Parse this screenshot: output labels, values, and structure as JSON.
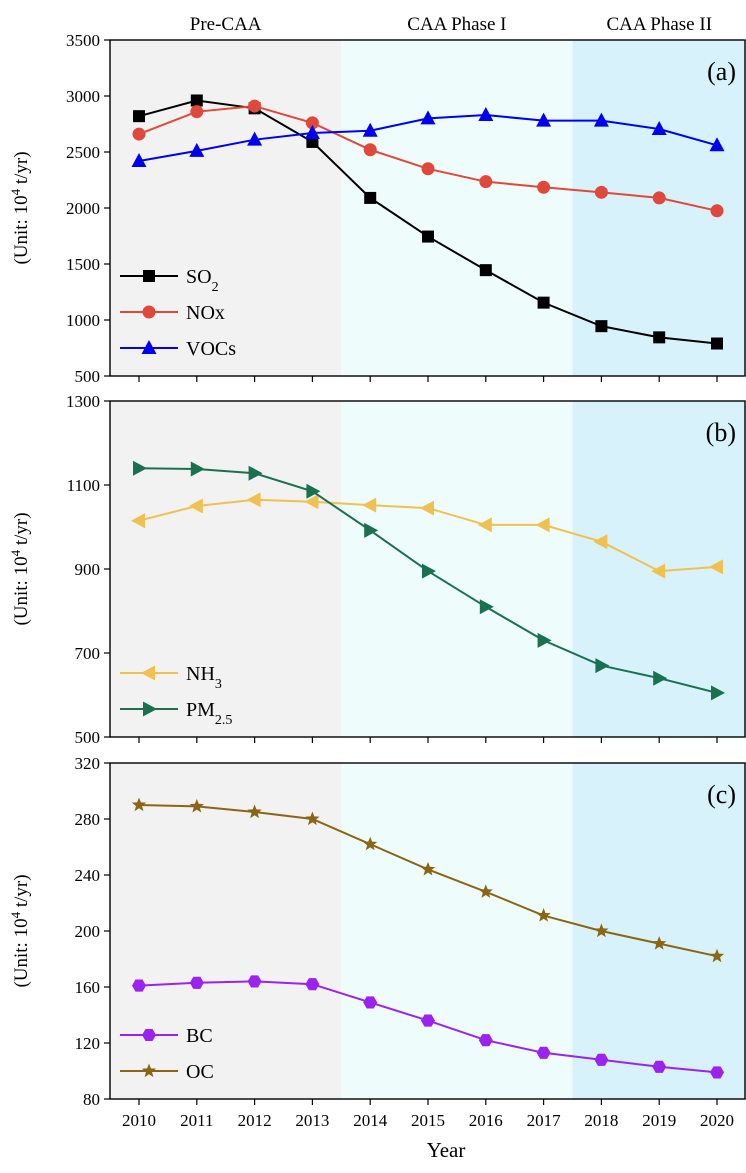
{
  "phase_labels": [
    "Pre-CAA",
    "CAA Phase I",
    "CAA Phase II"
  ],
  "colors": {
    "pre_bg": "#f2f2f2",
    "phase1_bg": "#eefcfc",
    "phase2_bg": "#d7f2fa"
  },
  "chart_data": [
    {
      "type": "line",
      "panel_label": "(a)",
      "ylabel": "(Unit: 10^4 t/yr)",
      "xlabel": "",
      "x": [
        2010,
        2011,
        2012,
        2013,
        2014,
        2015,
        2016,
        2017,
        2018,
        2019,
        2020
      ],
      "ylim": [
        500,
        3500
      ],
      "yticks": [
        500,
        1000,
        1500,
        2000,
        2500,
        3000,
        3500
      ],
      "legend_position": "bottom-left",
      "series": [
        {
          "name": "SO2",
          "name_base": "SO",
          "name_sub": "2",
          "color": "#000000",
          "marker": "square",
          "values": [
            2820,
            2960,
            2890,
            2590,
            2090,
            1745,
            1445,
            1155,
            945,
            845,
            790
          ]
        },
        {
          "name": "NOx",
          "name_base": "NOx",
          "name_sub": "",
          "color": "#e0483b",
          "marker": "circle",
          "values": [
            2660,
            2860,
            2910,
            2760,
            2520,
            2350,
            2235,
            2185,
            2140,
            2090,
            1975
          ]
        },
        {
          "name": "VOCs",
          "name_base": "VOCs",
          "name_sub": "",
          "color": "#0000ee",
          "marker": "triangle-up",
          "values": [
            2420,
            2510,
            2610,
            2670,
            2690,
            2800,
            2830,
            2780,
            2780,
            2705,
            2560
          ]
        }
      ]
    },
    {
      "type": "line",
      "panel_label": "(b)",
      "ylabel": "(Unit: 10^4 t/yr)",
      "xlabel": "",
      "x": [
        2010,
        2011,
        2012,
        2013,
        2014,
        2015,
        2016,
        2017,
        2018,
        2019,
        2020
      ],
      "ylim": [
        500,
        1300
      ],
      "yticks": [
        500,
        700,
        900,
        1100,
        1300
      ],
      "legend_position": "bottom-left",
      "series": [
        {
          "name": "NH3",
          "name_base": "NH",
          "name_sub": "3",
          "color": "#f0c050",
          "marker": "triangle-left",
          "values": [
            1015,
            1050,
            1065,
            1060,
            1052,
            1045,
            1005,
            1005,
            965,
            895,
            905
          ]
        },
        {
          "name": "PM2.5",
          "name_base": "PM",
          "name_sub": "2.5",
          "color": "#197150",
          "marker": "triangle-right",
          "values": [
            1140,
            1138,
            1128,
            1085,
            992,
            895,
            810,
            730,
            670,
            640,
            605
          ]
        }
      ]
    },
    {
      "type": "line",
      "panel_label": "(c)",
      "ylabel": "(Unit: 10^4 t/yr)",
      "xlabel": "Year",
      "x": [
        2010,
        2011,
        2012,
        2013,
        2014,
        2015,
        2016,
        2017,
        2018,
        2019,
        2020
      ],
      "ylim": [
        80,
        320
      ],
      "yticks": [
        80,
        120,
        160,
        200,
        240,
        280,
        320
      ],
      "legend_position": "bottom-left",
      "series": [
        {
          "name": "BC",
          "name_base": "BC",
          "name_sub": "",
          "color": "#9b22ef",
          "marker": "hexagon",
          "values": [
            161,
            163,
            164,
            162,
            149,
            136,
            122,
            113,
            108,
            103,
            99
          ]
        },
        {
          "name": "OC",
          "name_base": "OC",
          "name_sub": "",
          "color": "#8b6514",
          "marker": "star",
          "values": [
            290,
            289,
            285,
            280,
            262,
            244,
            228,
            211,
            200,
            191,
            182
          ]
        }
      ]
    }
  ]
}
